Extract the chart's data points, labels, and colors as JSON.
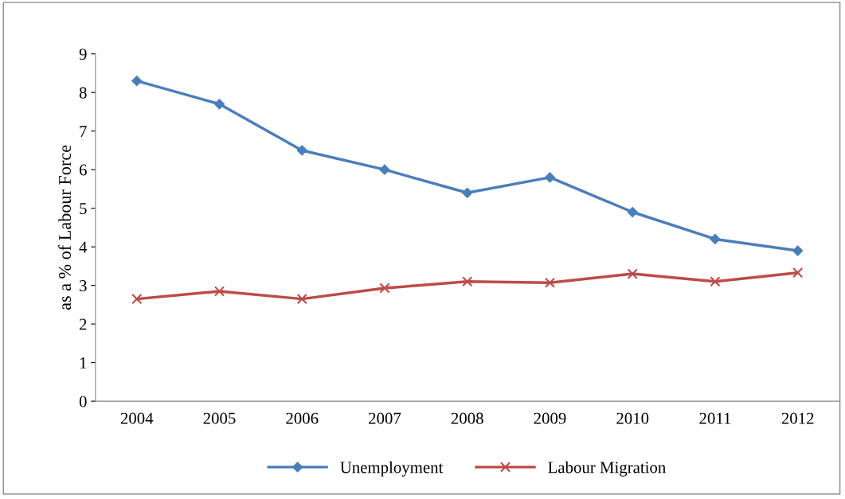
{
  "chart_data": {
    "type": "line",
    "ylabel": "as a % of Labour Force",
    "categories": [
      "2004",
      "2005",
      "2006",
      "2007",
      "2008",
      "2009",
      "2010",
      "2011",
      "2012"
    ],
    "series": [
      {
        "name": "Unemployment",
        "color": "#4a7ebb",
        "marker": "diamond",
        "values": [
          8.3,
          7.7,
          6.5,
          6.0,
          5.4,
          5.8,
          4.9,
          4.2,
          3.9
        ]
      },
      {
        "name": "Labour Migration",
        "color": "#be4b48",
        "marker": "cross",
        "values": [
          2.65,
          2.85,
          2.65,
          2.93,
          3.1,
          3.07,
          3.3,
          3.1,
          3.33
        ]
      }
    ],
    "ylim": [
      0,
      9
    ],
    "yticks": [
      0,
      1,
      2,
      3,
      4,
      5,
      6,
      7,
      8,
      9
    ],
    "grid": false,
    "legend": "bottom",
    "line_style": "solid"
  }
}
